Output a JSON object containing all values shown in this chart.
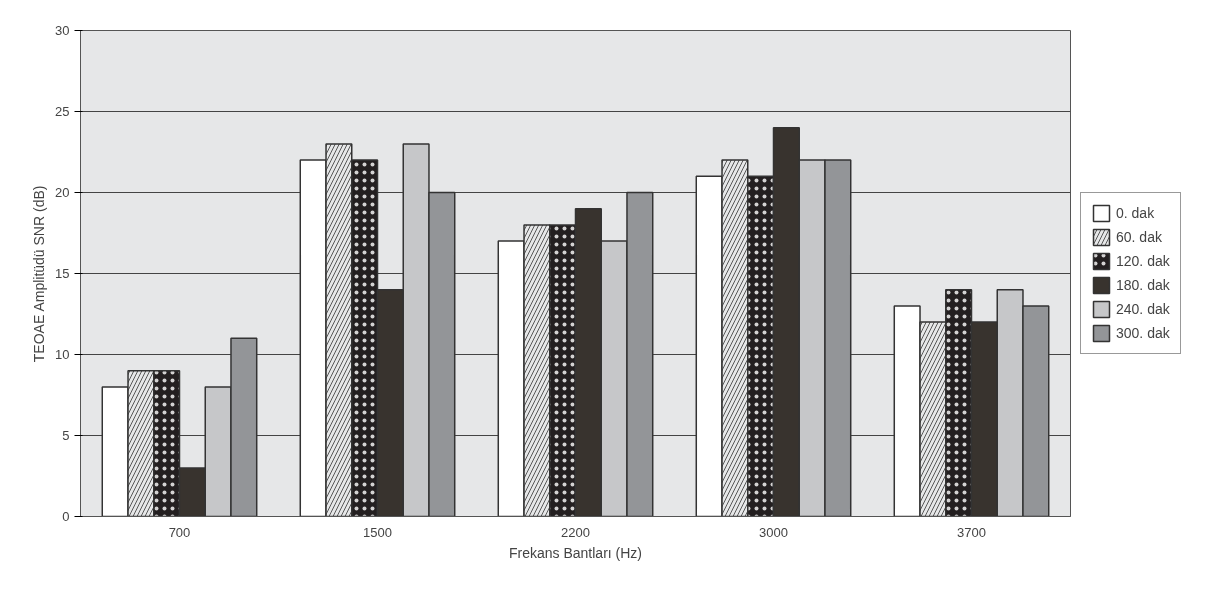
{
  "chart_data": {
    "type": "bar",
    "xlabel": "Frekans Bantları (Hz)",
    "ylabel": "TEOAE Amplitüdü SNR (dB)",
    "categories": [
      "700",
      "1500",
      "2200",
      "3000",
      "3700"
    ],
    "series": [
      {
        "name": "0. dak",
        "color": "#ffffff",
        "values": [
          8,
          22,
          17,
          21,
          13
        ]
      },
      {
        "name": "60. dak",
        "color": "#e6e7e8",
        "values": [
          9,
          23,
          18,
          22,
          12
        ]
      },
      {
        "name": "120. dak",
        "color": "#231f20",
        "values": [
          9,
          22,
          18,
          21,
          14
        ]
      },
      {
        "name": "180. dak",
        "color": "#38332e",
        "values": [
          3,
          14,
          19,
          24,
          12
        ]
      },
      {
        "name": "240. dak",
        "color": "#c6c7c9",
        "values": [
          8,
          23,
          17,
          22,
          14
        ]
      },
      {
        "name": "300. dak",
        "color": "#939598",
        "values": [
          11,
          20,
          20,
          22,
          13
        ]
      }
    ],
    "ylim": [
      0,
      30
    ],
    "yticks": [
      0,
      5,
      10,
      15,
      20,
      25,
      30
    ],
    "grid": "y",
    "legend": "right"
  }
}
